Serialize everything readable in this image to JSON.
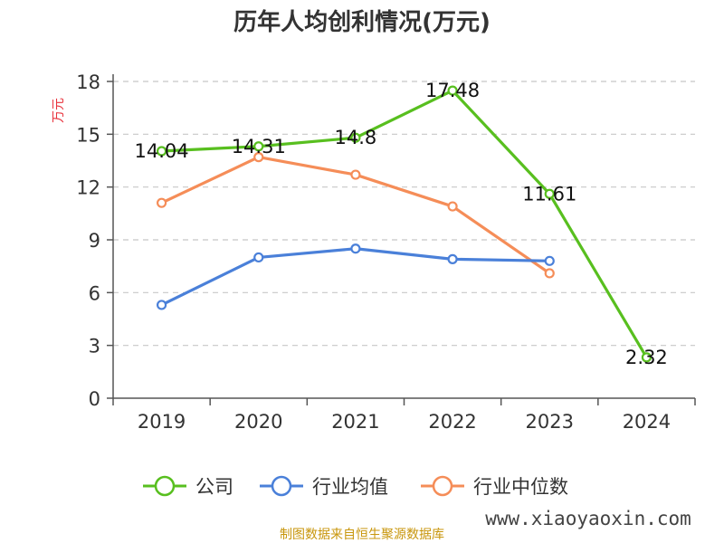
{
  "chart_data": {
    "type": "line",
    "title": "历年人均创利情况(万元)",
    "ylabel": "万元",
    "xlabel": "",
    "categories": [
      "2019",
      "2020",
      "2021",
      "2022",
      "2023",
      "2024"
    ],
    "ylim": [
      0,
      18
    ],
    "yticks": [
      0,
      3,
      6,
      9,
      12,
      15,
      18
    ],
    "grid": "horizontal-dashed",
    "legend_position": "bottom",
    "series": [
      {
        "name": "公司",
        "color": "#58bf1f",
        "values": [
          14.04,
          14.31,
          14.8,
          17.48,
          11.61,
          2.32
        ],
        "labels": [
          "14.04",
          "14.31",
          "14.8",
          "17.48",
          "11.61",
          "2.32"
        ]
      },
      {
        "name": "行业均值",
        "color": "#4a80d9",
        "values": [
          5.3,
          8.0,
          8.5,
          7.9,
          7.8,
          null
        ]
      },
      {
        "name": "行业中位数",
        "color": "#f58d58",
        "values": [
          11.1,
          13.7,
          12.7,
          10.9,
          7.1,
          null
        ]
      }
    ]
  },
  "source": "制图数据来自恒生聚源数据库",
  "watermark": "www.xiaoyaoxin.com"
}
